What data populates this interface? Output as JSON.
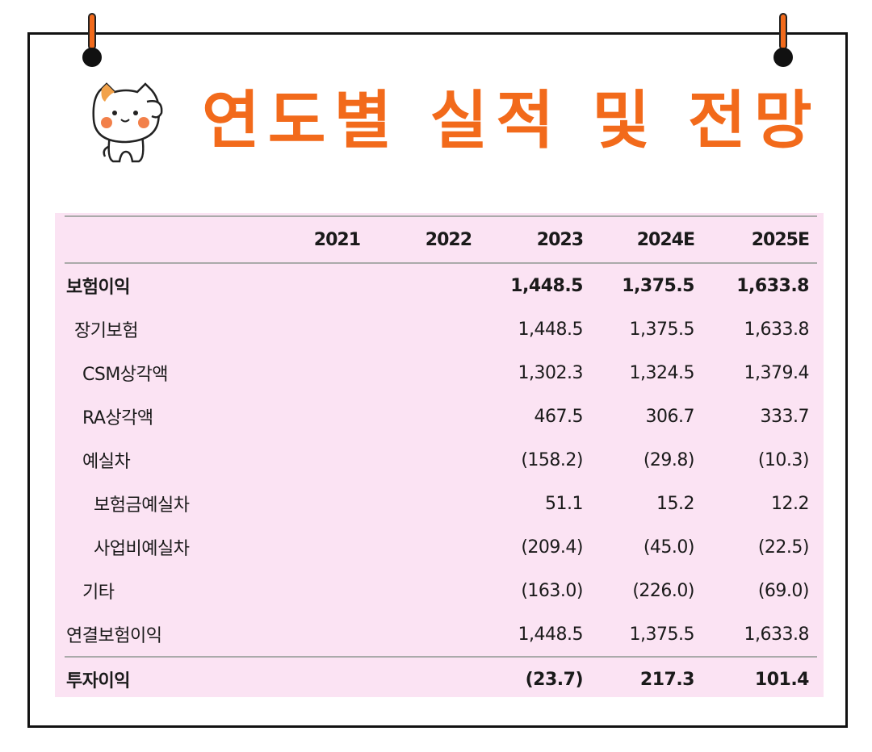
{
  "title": "연도별 실적 및 전망",
  "table": {
    "columns": [
      "",
      "2021",
      "2022",
      "2023",
      "2024E",
      "2025E"
    ],
    "rows": [
      {
        "label": "보험이익",
        "values": [
          "",
          "",
          "1,448.5",
          "1,375.5",
          "1,633.8"
        ]
      },
      {
        "label": "장기보험",
        "values": [
          "",
          "",
          "1,448.5",
          "1,375.5",
          "1,633.8"
        ]
      },
      {
        "label": "CSM상각액",
        "values": [
          "",
          "",
          "1,302.3",
          "1,324.5",
          "1,379.4"
        ]
      },
      {
        "label": "RA상각액",
        "values": [
          "",
          "",
          "467.5",
          "306.7",
          "333.7"
        ]
      },
      {
        "label": "예실차",
        "values": [
          "",
          "",
          "(158.2)",
          "(29.8)",
          "(10.3)"
        ]
      },
      {
        "label": "보험금예실차",
        "values": [
          "",
          "",
          "51.1",
          "15.2",
          "12.2"
        ]
      },
      {
        "label": "사업비예실차",
        "values": [
          "",
          "",
          "(209.4)",
          "(45.0)",
          "(22.5)"
        ]
      },
      {
        "label": "기타",
        "values": [
          "",
          "",
          "(163.0)",
          "(226.0)",
          "(69.0)"
        ]
      },
      {
        "label": "연결보험이익",
        "values": [
          "",
          "",
          "1,448.5",
          "1,375.5",
          "1,633.8"
        ]
      },
      {
        "label": "투자이익",
        "values": [
          "",
          "",
          "(23.7)",
          "217.3",
          "101.4"
        ]
      }
    ]
  },
  "colors": {
    "accent": "#f26a1b",
    "panel": "#fbe3f3",
    "border": "#111111"
  }
}
